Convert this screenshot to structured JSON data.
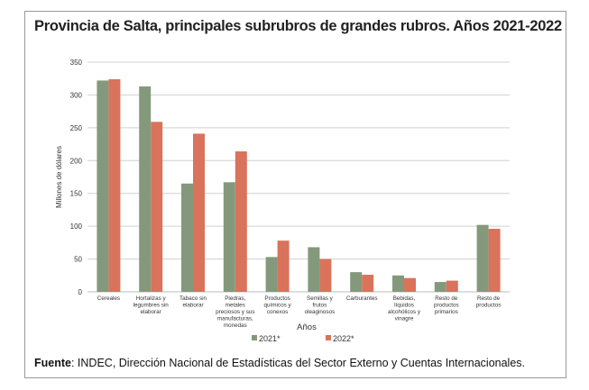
{
  "chart_data": {
    "type": "bar",
    "title": "Provincia de Salta, principales subrubros de grandes rubros. Años 2021-2022",
    "xlabel": "Años",
    "ylabel": "Millones de dólares",
    "ylim": [
      0,
      350
    ],
    "yticks": [
      0,
      50,
      100,
      150,
      200,
      250,
      300,
      350
    ],
    "grid": true,
    "legend_position": "bottom",
    "categories": [
      [
        "Cereales"
      ],
      [
        "Hortalizas y",
        "legumbres sin",
        "elaborar"
      ],
      [
        "Tabaco sin",
        "elaborar"
      ],
      [
        "Piedras,",
        "metales",
        "preciosos y sus",
        "manufacturas,",
        "monedas"
      ],
      [
        "Productos",
        "químicos y",
        "conexos"
      ],
      [
        "Semillas y",
        "frutos",
        "oleaginosos"
      ],
      [
        "Carburantes"
      ],
      [
        "Bebidas,",
        "líquidos",
        "alcohólicos y",
        "vinagre"
      ],
      [
        "Resto de",
        "productos",
        "primarios"
      ],
      [
        "Resto de",
        "productos"
      ]
    ],
    "series": [
      {
        "name": "2021*",
        "color": "#84997b",
        "values": [
          322,
          313,
          165,
          167,
          53,
          68,
          30,
          25,
          15,
          102
        ]
      },
      {
        "name": "2022*",
        "color": "#d9735c",
        "values": [
          324,
          259,
          241,
          214,
          78,
          50,
          26,
          21,
          17,
          96
        ]
      }
    ]
  },
  "source": {
    "label": "Fuente",
    "text": ": INDEC, Dirección Nacional de Estadísticas del Sector Externo y Cuentas Internacionales."
  }
}
